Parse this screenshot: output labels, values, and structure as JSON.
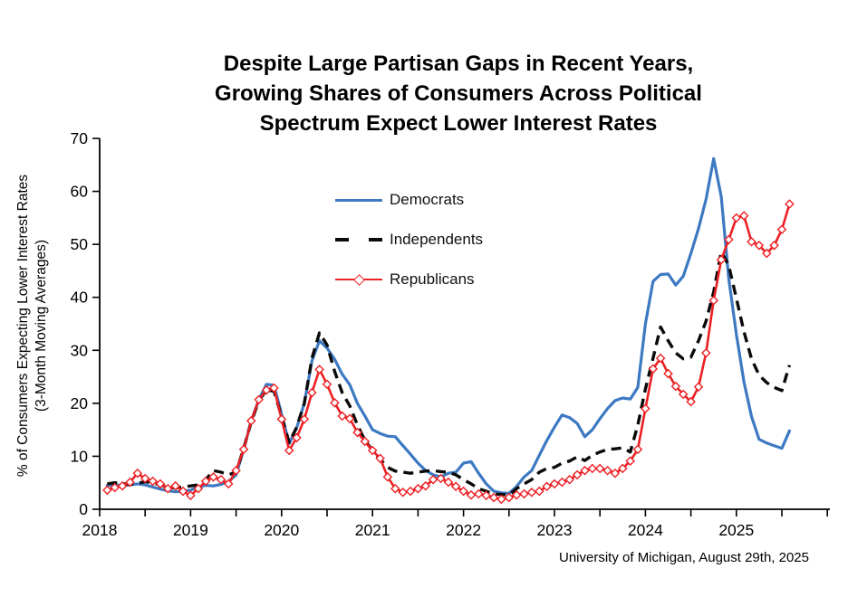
{
  "title": {
    "line1": "Despite Large Partisan Gaps in Recent Years,",
    "line2": "Growing Shares of Consumers Across Political",
    "line3": "Spectrum Expect Lower Interest Rates"
  },
  "y_axis": {
    "label_line1": "% of Consumers Expecting Lower Interest Rates",
    "label_line2": "(3-Month Moving Averages)",
    "ticks": [
      0,
      10,
      20,
      30,
      40,
      50,
      60,
      70
    ]
  },
  "x_axis": {
    "tick_labels": [
      "2018",
      "2019",
      "2020",
      "2021",
      "2022",
      "2023",
      "2024",
      "2025"
    ],
    "minor_tick_interval_years": 0.5
  },
  "legend": {
    "entries": [
      {
        "name": "Democrats",
        "color": "#3d79c2",
        "style": "solid"
      },
      {
        "name": "Independents",
        "color": "#0a0a0a",
        "style": "dashed"
      },
      {
        "name": "Republicans",
        "color": "#ec2024",
        "style": "line-with-diamond-markers"
      }
    ]
  },
  "source": "University of Michigan, August 29th, 2025",
  "chart_data": {
    "type": "line",
    "title": "Despite Large Partisan Gaps in Recent Years, Growing Shares of Consumers Across Political Spectrum Expect Lower Interest Rates",
    "ylabel": "% of Consumers Expecting Lower Interest Rates (3-Month Moving Averages)",
    "xlabel": "",
    "ylim": [
      0,
      70
    ],
    "xlim": [
      2018,
      2026
    ],
    "grid": false,
    "legend_position": "upper-center-left",
    "x_start": "2018-02",
    "x_step": "1 month",
    "x_end": "2025-08",
    "series": [
      {
        "name": "Democrats",
        "color": "#3d79c2",
        "style": "solid",
        "values": [
          4.5,
          4.6,
          4.5,
          4.6,
          4.8,
          4.6,
          4.2,
          3.8,
          3.5,
          3.3,
          3.4,
          3.6,
          4.2,
          4.5,
          4.4,
          4.7,
          5.2,
          6.5,
          11.3,
          16.7,
          20.7,
          23.6,
          23.4,
          18.0,
          12.4,
          15.4,
          20.0,
          28.0,
          31.8,
          30.4,
          28.3,
          25.5,
          23.5,
          20.0,
          17.6,
          15.0,
          14.3,
          13.8,
          13.7,
          12.0,
          10.4,
          8.7,
          7.3,
          6.5,
          6.1,
          6.8,
          7.0,
          8.7,
          9.0,
          6.8,
          4.8,
          3.4,
          3.1,
          3.0,
          4.3,
          6.1,
          7.3,
          10.2,
          13.0,
          15.5,
          17.8,
          17.3,
          16.2,
          13.7,
          15.0,
          17.1,
          19.0,
          20.5,
          21.0,
          20.8,
          23.0,
          35.0,
          43.0,
          44.3,
          44.4,
          42.3,
          44.0,
          48.3,
          53.0,
          58.5,
          66.2,
          59.0,
          43.5,
          33.0,
          24.0,
          17.5,
          13.2,
          12.5,
          12.0,
          11.5,
          14.8
        ]
      },
      {
        "name": "Independents",
        "color": "#0a0a0a",
        "style": "dashed",
        "values": [
          4.8,
          5.0,
          4.8,
          4.7,
          4.9,
          5.2,
          5.0,
          4.6,
          4.2,
          4.0,
          4.2,
          4.4,
          4.6,
          5.6,
          7.3,
          7.0,
          6.5,
          7.0,
          11.5,
          16.5,
          20.5,
          22.5,
          22.3,
          17.5,
          12.6,
          15.5,
          20.0,
          28.5,
          33.3,
          31.0,
          26.0,
          22.0,
          19.5,
          15.9,
          13.0,
          11.1,
          9.4,
          7.9,
          7.2,
          7.0,
          6.8,
          7.0,
          7.2,
          7.3,
          7.1,
          7.0,
          6.5,
          5.6,
          4.8,
          3.9,
          3.4,
          2.9,
          2.8,
          2.7,
          3.9,
          4.8,
          5.6,
          7.0,
          7.7,
          7.9,
          8.7,
          9.1,
          9.9,
          9.2,
          10.2,
          10.8,
          11.3,
          11.4,
          11.6,
          10.8,
          15.9,
          22.7,
          28.5,
          34.4,
          31.8,
          29.5,
          28.4,
          28.7,
          31.8,
          35.5,
          41.0,
          48.6,
          46.0,
          39.8,
          33.5,
          28.4,
          25.3,
          23.9,
          23.0,
          22.4,
          27.2
        ]
      },
      {
        "name": "Republicans",
        "color": "#ec2024",
        "style": "solid-with-open-diamond-markers",
        "values": [
          3.6,
          4.1,
          4.4,
          5.1,
          6.8,
          5.8,
          5.3,
          4.8,
          3.9,
          4.4,
          3.4,
          2.6,
          3.9,
          5.3,
          6.1,
          5.6,
          4.8,
          7.3,
          11.3,
          16.7,
          20.7,
          22.5,
          22.9,
          17.0,
          11.1,
          13.5,
          17.0,
          22.0,
          26.4,
          23.6,
          20.1,
          17.6,
          17.1,
          14.5,
          12.8,
          11.1,
          9.6,
          6.1,
          3.9,
          3.2,
          3.4,
          3.9,
          4.4,
          5.6,
          5.8,
          5.1,
          4.3,
          3.4,
          2.7,
          2.9,
          2.6,
          2.2,
          1.9,
          2.2,
          2.7,
          2.9,
          3.2,
          3.4,
          4.3,
          4.8,
          5.1,
          5.6,
          6.5,
          7.3,
          7.7,
          7.7,
          7.3,
          6.8,
          7.7,
          9.1,
          11.3,
          19.0,
          26.5,
          28.5,
          25.6,
          23.2,
          21.7,
          20.3,
          23.1,
          29.5,
          39.4,
          47.1,
          50.9,
          55.0,
          55.4,
          50.5,
          49.8,
          48.3,
          49.8,
          52.8,
          57.6
        ]
      }
    ]
  }
}
